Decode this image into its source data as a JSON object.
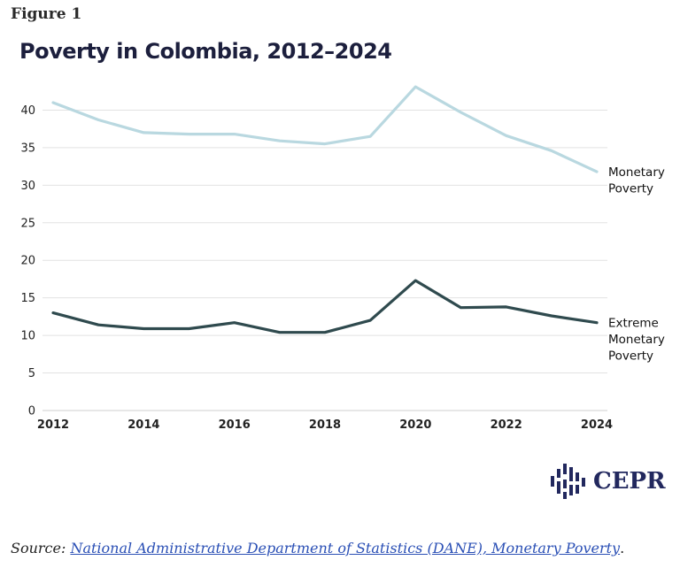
{
  "figure_label": "Figure 1",
  "chart_data": {
    "type": "line",
    "title": "Poverty in Colombia, 2012–2024",
    "x": [
      2012,
      2013,
      2014,
      2015,
      2016,
      2017,
      2018,
      2019,
      2020,
      2021,
      2022,
      2023,
      2024
    ],
    "x_ticks": [
      2012,
      2014,
      2016,
      2018,
      2020,
      2022,
      2024
    ],
    "y_ticks": [
      0,
      5,
      10,
      15,
      20,
      25,
      30,
      35,
      40
    ],
    "ylim": [
      0,
      45
    ],
    "grid": true,
    "series": [
      {
        "label_lines": [
          "Monetary",
          "Poverty"
        ],
        "color": "#b9d8e0",
        "values": [
          41.0,
          38.7,
          37.0,
          36.8,
          36.8,
          35.9,
          35.5,
          36.5,
          43.1,
          39.7,
          36.6,
          34.6,
          31.8
        ]
      },
      {
        "label_lines": [
          "Extreme",
          "Monetary",
          "Poverty"
        ],
        "color": "#2f4a4e",
        "values": [
          13.0,
          11.4,
          10.9,
          10.9,
          11.7,
          10.4,
          10.4,
          12.0,
          17.3,
          13.7,
          13.8,
          12.6,
          11.7
        ]
      }
    ]
  },
  "logo": {
    "text": "CEPR",
    "icon": "cepr-logo-icon"
  },
  "source": {
    "prefix": "Source: ",
    "link_text": "National Administrative Department of Statistics (DANE), Monetary Poverty",
    "suffix": "."
  }
}
